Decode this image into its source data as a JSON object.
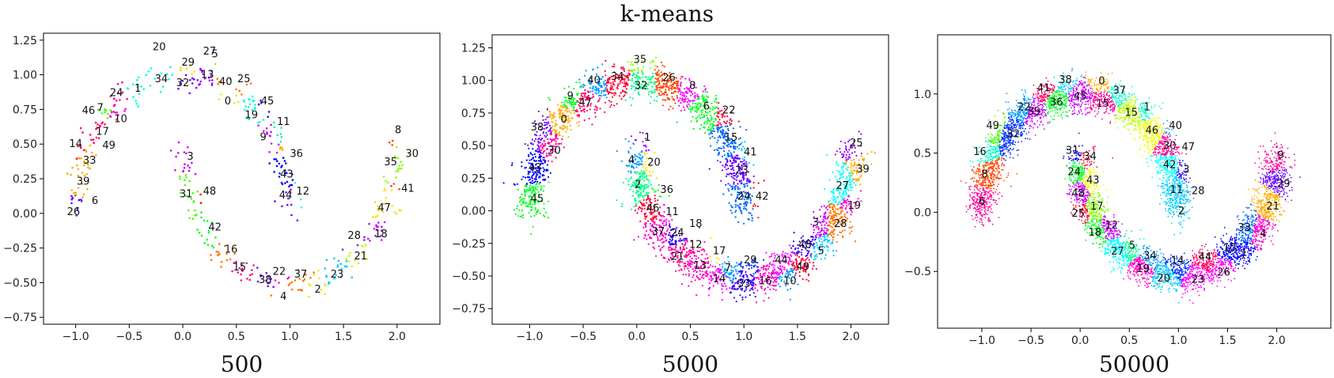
{
  "title": "k-means",
  "colors": [
    "#ff0000",
    "#ff4400",
    "#ff7700",
    "#ffaa00",
    "#ffdd00",
    "#eeff00",
    "#bbff00",
    "#88ff00",
    "#44ff00",
    "#00ff22",
    "#00ff88",
    "#00ffcc",
    "#00ffff",
    "#00ccff",
    "#0099ff",
    "#0066ff",
    "#0033ff",
    "#0000ff",
    "#3300ff",
    "#6600ff",
    "#9900ff",
    "#cc00ff",
    "#ff00ff",
    "#ff00cc",
    "#ff0099",
    "#ff0066",
    "#ff0033"
  ],
  "chart_data": [
    {
      "type": "scatter",
      "subtitle": "500",
      "n_points": 500,
      "xlim": [
        -1.3,
        2.4
      ],
      "ylim": [
        -0.8,
        1.3
      ],
      "xticks": [
        -1.0,
        -0.5,
        0.0,
        0.5,
        1.0,
        1.5,
        2.0
      ],
      "yticks": [
        -0.75,
        -0.5,
        -0.25,
        0.0,
        0.25,
        0.5,
        0.75,
        1.0,
        1.25
      ],
      "xtick_labels": [
        "−1.0",
        "−0.5",
        "0.0",
        "0.5",
        "1.0",
        "1.5",
        "2.0"
      ],
      "ytick_labels": [
        "−0.75",
        "−0.50",
        "−0.25",
        "0.00",
        "0.25",
        "0.50",
        "0.75",
        "1.00",
        "1.25"
      ],
      "cluster_labels": [
        {
          "id": "20",
          "x": -0.22,
          "y": 1.2
        },
        {
          "id": "27",
          "x": 0.25,
          "y": 1.17
        },
        {
          "id": "5",
          "x": 0.3,
          "y": 1.15
        },
        {
          "id": "29",
          "x": 0.05,
          "y": 1.09
        },
        {
          "id": "13",
          "x": 0.23,
          "y": 1.0
        },
        {
          "id": "34",
          "x": -0.2,
          "y": 0.97
        },
        {
          "id": "32",
          "x": 0.0,
          "y": 0.94
        },
        {
          "id": "40",
          "x": 0.4,
          "y": 0.95
        },
        {
          "id": "25",
          "x": 0.57,
          "y": 0.97
        },
        {
          "id": "1",
          "x": -0.42,
          "y": 0.9
        },
        {
          "id": "24",
          "x": -0.62,
          "y": 0.87
        },
        {
          "id": "0",
          "x": 0.42,
          "y": 0.81
        },
        {
          "id": "45",
          "x": 0.79,
          "y": 0.81
        },
        {
          "id": "7",
          "x": -0.77,
          "y": 0.76
        },
        {
          "id": "46",
          "x": -0.88,
          "y": 0.74
        },
        {
          "id": "19",
          "x": 0.64,
          "y": 0.71
        },
        {
          "id": "10",
          "x": -0.58,
          "y": 0.68
        },
        {
          "id": "11",
          "x": 0.94,
          "y": 0.66
        },
        {
          "id": "17",
          "x": -0.75,
          "y": 0.59
        },
        {
          "id": "9",
          "x": 0.75,
          "y": 0.55
        },
        {
          "id": "14",
          "x": -1.0,
          "y": 0.5
        },
        {
          "id": "49",
          "x": -0.69,
          "y": 0.49
        },
        {
          "id": "36",
          "x": 1.06,
          "y": 0.43
        },
        {
          "id": "3",
          "x": 0.07,
          "y": 0.41
        },
        {
          "id": "33",
          "x": -0.87,
          "y": 0.38
        },
        {
          "id": "8",
          "x": 2.01,
          "y": 0.6
        },
        {
          "id": "30",
          "x": 2.14,
          "y": 0.43
        },
        {
          "id": "35",
          "x": 1.94,
          "y": 0.37
        },
        {
          "id": "43",
          "x": 0.97,
          "y": 0.28
        },
        {
          "id": "39",
          "x": -0.93,
          "y": 0.23
        },
        {
          "id": "41",
          "x": 2.1,
          "y": 0.18
        },
        {
          "id": "48",
          "x": 0.25,
          "y": 0.16
        },
        {
          "id": "12",
          "x": 1.12,
          "y": 0.16
        },
        {
          "id": "31",
          "x": 0.03,
          "y": 0.14
        },
        {
          "id": "44",
          "x": 0.96,
          "y": 0.13
        },
        {
          "id": "6",
          "x": -0.82,
          "y": 0.09
        },
        {
          "id": "47",
          "x": 1.88,
          "y": 0.04
        },
        {
          "id": "26",
          "x": -1.02,
          "y": 0.01
        },
        {
          "id": "42",
          "x": 0.3,
          "y": -0.1
        },
        {
          "id": "28",
          "x": 1.6,
          "y": -0.16
        },
        {
          "id": "18",
          "x": 1.85,
          "y": -0.15
        },
        {
          "id": "16",
          "x": 0.45,
          "y": -0.26
        },
        {
          "id": "21",
          "x": 1.66,
          "y": -0.31
        },
        {
          "id": "15",
          "x": 0.53,
          "y": -0.39
        },
        {
          "id": "22",
          "x": 0.9,
          "y": -0.42
        },
        {
          "id": "37",
          "x": 1.1,
          "y": -0.44
        },
        {
          "id": "23",
          "x": 1.44,
          "y": -0.44
        },
        {
          "id": "38",
          "x": 0.77,
          "y": -0.48
        },
        {
          "id": "2",
          "x": 1.26,
          "y": -0.55
        },
        {
          "id": "4",
          "x": 0.94,
          "y": -0.6
        }
      ]
    },
    {
      "type": "scatter",
      "subtitle": "5000",
      "n_points": 5000,
      "xlim": [
        -1.35,
        2.35
      ],
      "ylim": [
        -0.87,
        1.35
      ],
      "xticks": [
        -1.0,
        -0.5,
        0.0,
        0.5,
        1.0,
        1.5,
        2.0
      ],
      "yticks": [
        -0.75,
        -0.5,
        -0.25,
        0.0,
        0.25,
        0.5,
        0.75,
        1.0,
        1.25
      ],
      "xtick_labels": [
        "−1.0",
        "−0.5",
        "0.0",
        "0.5",
        "1.0",
        "1.5",
        "2.0"
      ],
      "ytick_labels": [
        "−0.75",
        "−0.50",
        "−0.25",
        "0.00",
        "0.25",
        "0.50",
        "0.75",
        "1.00",
        "1.25"
      ],
      "cluster_labels": [
        {
          "id": "35",
          "x": 0.03,
          "y": 1.16
        },
        {
          "id": "34",
          "x": -0.18,
          "y": 1.03
        },
        {
          "id": "40",
          "x": -0.4,
          "y": 1.0
        },
        {
          "id": "32",
          "x": 0.04,
          "y": 0.96
        },
        {
          "id": "26",
          "x": 0.3,
          "y": 1.02
        },
        {
          "id": "8",
          "x": 0.52,
          "y": 0.96
        },
        {
          "id": "9",
          "x": -0.62,
          "y": 0.88
        },
        {
          "id": "47",
          "x": -0.48,
          "y": 0.83
        },
        {
          "id": "6",
          "x": 0.65,
          "y": 0.8
        },
        {
          "id": "22",
          "x": 0.86,
          "y": 0.77
        },
        {
          "id": "0",
          "x": -0.68,
          "y": 0.7
        },
        {
          "id": "38",
          "x": -0.93,
          "y": 0.64
        },
        {
          "id": "1",
          "x": 0.1,
          "y": 0.56
        },
        {
          "id": "15",
          "x": 0.88,
          "y": 0.56
        },
        {
          "id": "25",
          "x": 2.05,
          "y": 0.52
        },
        {
          "id": "30",
          "x": -0.77,
          "y": 0.46
        },
        {
          "id": "41",
          "x": 1.06,
          "y": 0.45
        },
        {
          "id": "4",
          "x": -0.05,
          "y": 0.39
        },
        {
          "id": "20",
          "x": 0.16,
          "y": 0.37
        },
        {
          "id": "43",
          "x": -0.95,
          "y": 0.33
        },
        {
          "id": "39",
          "x": 2.11,
          "y": 0.32
        },
        {
          "id": "23",
          "x": 0.98,
          "y": 0.31
        },
        {
          "id": "27",
          "x": 1.92,
          "y": 0.19
        },
        {
          "id": "2",
          "x": 0.01,
          "y": 0.2
        },
        {
          "id": "36",
          "x": 0.28,
          "y": 0.16
        },
        {
          "id": "24",
          "x": 1.0,
          "y": 0.11
        },
        {
          "id": "42",
          "x": 1.17,
          "y": 0.11
        },
        {
          "id": "45",
          "x": -0.93,
          "y": 0.09
        },
        {
          "id": "19",
          "x": 2.03,
          "y": 0.04
        },
        {
          "id": "46",
          "x": 0.15,
          "y": 0.02
        },
        {
          "id": "11",
          "x": 0.33,
          "y": -0.01
        },
        {
          "id": "18",
          "x": 0.55,
          "y": -0.1
        },
        {
          "id": "3",
          "x": 1.67,
          "y": -0.09
        },
        {
          "id": "28",
          "x": 1.9,
          "y": -0.1
        },
        {
          "id": "37",
          "x": 0.2,
          "y": -0.16
        },
        {
          "id": "24",
          "x": 0.38,
          "y": -0.17
        },
        {
          "id": "12",
          "x": 0.55,
          "y": -0.26
        },
        {
          "id": "48",
          "x": 1.57,
          "y": -0.26
        },
        {
          "id": "17",
          "x": 0.77,
          "y": -0.31
        },
        {
          "id": "21",
          "x": 0.38,
          "y": -0.35
        },
        {
          "id": "5",
          "x": 1.72,
          "y": -0.31
        },
        {
          "id": "13",
          "x": 0.59,
          "y": -0.42
        },
        {
          "id": "7",
          "x": 0.85,
          "y": -0.44
        },
        {
          "id": "29",
          "x": 1.06,
          "y": -0.38
        },
        {
          "id": "44",
          "x": 1.35,
          "y": -0.38
        },
        {
          "id": "49",
          "x": 1.55,
          "y": -0.43
        },
        {
          "id": "14",
          "x": 0.77,
          "y": -0.52
        },
        {
          "id": "33",
          "x": 1.0,
          "y": -0.56
        },
        {
          "id": "16",
          "x": 1.2,
          "y": -0.54
        },
        {
          "id": "10",
          "x": 1.43,
          "y": -0.54
        }
      ]
    },
    {
      "type": "scatter",
      "subtitle": "50000",
      "n_points": 50000,
      "xlim": [
        -1.45,
        2.55
      ],
      "ylim": [
        -0.98,
        1.5
      ],
      "xticks": [
        -1.0,
        -0.5,
        0.0,
        0.5,
        1.0,
        1.5,
        2.0
      ],
      "yticks": [
        -0.5,
        0.0,
        0.5,
        1.0
      ],
      "xtick_labels": [
        "−1.0",
        "−0.5",
        "0.0",
        "0.5",
        "1.0",
        "1.5",
        "2.0"
      ],
      "ytick_labels": [
        "−0.5",
        "0.0",
        "0.5",
        "1.0"
      ],
      "cluster_labels": [
        {
          "id": "38",
          "x": -0.15,
          "y": 1.12
        },
        {
          "id": "0",
          "x": 0.22,
          "y": 1.11
        },
        {
          "id": "41",
          "x": -0.37,
          "y": 1.05
        },
        {
          "id": "37",
          "x": 0.4,
          "y": 1.03
        },
        {
          "id": "45",
          "x": 0.0,
          "y": 0.98
        },
        {
          "id": "22",
          "x": -0.57,
          "y": 0.89
        },
        {
          "id": "36",
          "x": -0.24,
          "y": 0.93
        },
        {
          "id": "15",
          "x": 0.23,
          "y": 0.92
        },
        {
          "id": "39",
          "x": -0.47,
          "y": 0.85
        },
        {
          "id": "1",
          "x": 0.68,
          "y": 0.89
        },
        {
          "id": "15",
          "x": 0.52,
          "y": 0.84
        },
        {
          "id": "40",
          "x": 0.97,
          "y": 0.73
        },
        {
          "id": "49",
          "x": -0.89,
          "y": 0.73
        },
        {
          "id": "46",
          "x": 0.73,
          "y": 0.69
        },
        {
          "id": "32",
          "x": -0.68,
          "y": 0.66
        },
        {
          "id": "30",
          "x": 0.91,
          "y": 0.56
        },
        {
          "id": "47",
          "x": 1.1,
          "y": 0.55
        },
        {
          "id": "16",
          "x": -1.02,
          "y": 0.51
        },
        {
          "id": "31",
          "x": -0.08,
          "y": 0.52
        },
        {
          "id": "34",
          "x": 0.1,
          "y": 0.47
        },
        {
          "id": "9",
          "x": 2.04,
          "y": 0.48
        },
        {
          "id": "42",
          "x": 0.91,
          "y": 0.4
        },
        {
          "id": "3",
          "x": 1.08,
          "y": 0.36
        },
        {
          "id": "24",
          "x": -0.06,
          "y": 0.34
        },
        {
          "id": "43",
          "x": 0.13,
          "y": 0.27
        },
        {
          "id": "8",
          "x": -0.97,
          "y": 0.32
        },
        {
          "id": "29",
          "x": 2.07,
          "y": 0.24
        },
        {
          "id": "11",
          "x": 0.98,
          "y": 0.19
        },
        {
          "id": "28",
          "x": 1.2,
          "y": 0.18
        },
        {
          "id": "48",
          "x": -0.02,
          "y": 0.16
        },
        {
          "id": "17",
          "x": 0.17,
          "y": 0.05
        },
        {
          "id": "6",
          "x": -1.0,
          "y": 0.09
        },
        {
          "id": "21",
          "x": 1.96,
          "y": 0.05
        },
        {
          "id": "2",
          "x": 1.03,
          "y": 0.01
        },
        {
          "id": "25",
          "x": -0.02,
          "y": -0.01
        },
        {
          "id": "12",
          "x": 0.32,
          "y": -0.11
        },
        {
          "id": "18",
          "x": 0.15,
          "y": -0.17
        },
        {
          "id": "33",
          "x": 1.67,
          "y": -0.13
        },
        {
          "id": "4",
          "x": 1.86,
          "y": -0.18
        },
        {
          "id": "5",
          "x": 0.53,
          "y": -0.28
        },
        {
          "id": "27",
          "x": 0.38,
          "y": -0.33
        },
        {
          "id": "10",
          "x": 1.52,
          "y": -0.3
        },
        {
          "id": "34",
          "x": 0.71,
          "y": -0.37
        },
        {
          "id": "7",
          "x": 1.66,
          "y": -0.37
        },
        {
          "id": "14",
          "x": 0.99,
          "y": -0.41
        },
        {
          "id": "44",
          "x": 1.27,
          "y": -0.38
        },
        {
          "id": "19",
          "x": 0.64,
          "y": -0.48
        },
        {
          "id": "26",
          "x": 1.46,
          "y": -0.51
        },
        {
          "id": "20",
          "x": 0.85,
          "y": -0.56
        },
        {
          "id": "23",
          "x": 1.2,
          "y": -0.57
        }
      ]
    }
  ]
}
